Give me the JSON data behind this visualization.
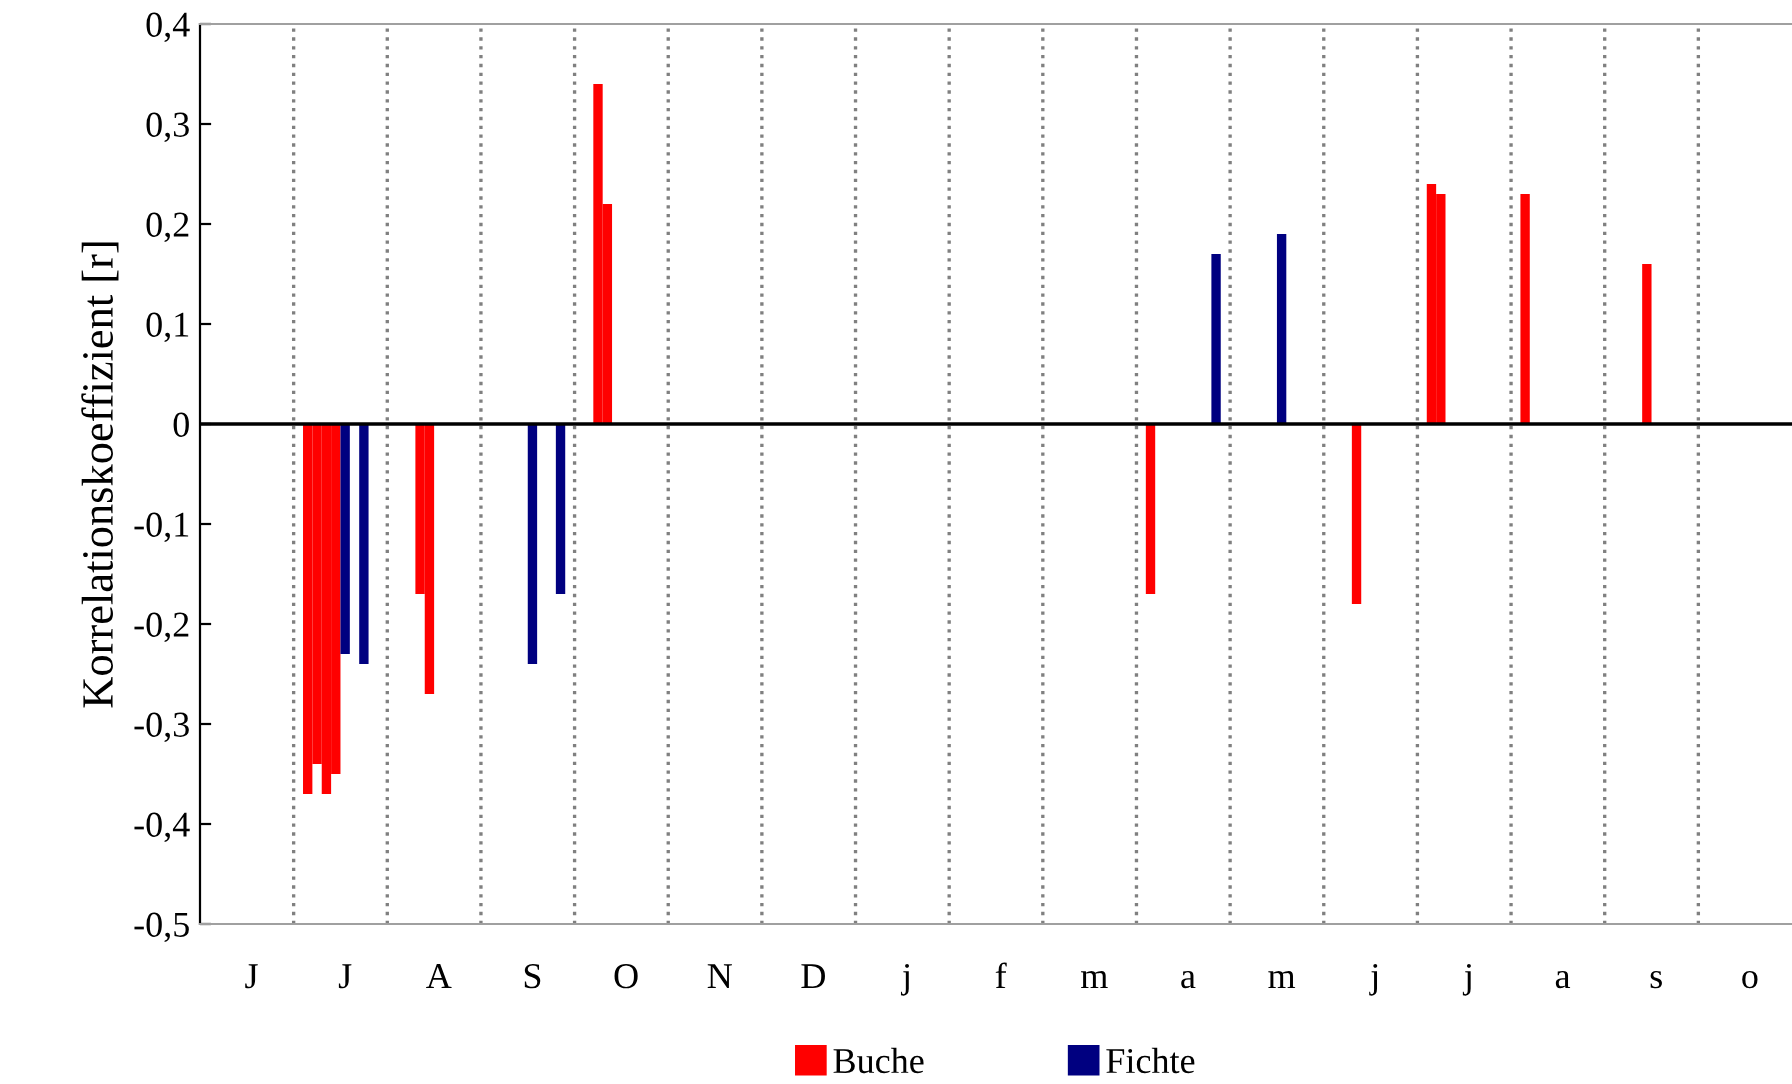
{
  "chart_data": {
    "type": "bar",
    "ylabel": "Korrelationskoeffizient [r]",
    "categories": [
      null,
      null,
      null,
      null,
      null,
      "J",
      null,
      null,
      null,
      null,
      null,
      null,
      null,
      null,
      null,
      "J",
      null,
      null,
      null,
      null,
      null,
      null,
      null,
      null,
      null,
      "A",
      null,
      null,
      null,
      null,
      null,
      null,
      null,
      null,
      null,
      "S",
      null,
      null,
      null,
      null,
      null,
      null,
      null,
      null,
      null,
      "O",
      null,
      null,
      null,
      null,
      null,
      null,
      null,
      null,
      null,
      "N",
      null,
      null,
      null,
      null,
      null,
      null,
      null,
      null,
      null,
      "D",
      null,
      null,
      null,
      null,
      null,
      null,
      null,
      null,
      null,
      "j",
      null,
      null,
      null,
      null,
      null,
      null,
      null,
      null,
      null,
      "f",
      null,
      null,
      null,
      null,
      null,
      null,
      null,
      null,
      null,
      "m",
      null,
      null,
      null,
      null,
      null,
      null,
      null,
      null,
      null,
      "a",
      null,
      null,
      null,
      null,
      null,
      null,
      null,
      null,
      null,
      "m",
      null,
      null,
      null,
      null,
      null,
      null,
      null,
      null,
      null,
      "j",
      null,
      null,
      null,
      null,
      null,
      null,
      null,
      null,
      null,
      "j",
      null,
      null,
      null,
      null,
      null,
      null,
      null,
      null,
      null,
      "a",
      null,
      null,
      null,
      null,
      null,
      null,
      null,
      null,
      null,
      "s",
      null,
      null,
      null,
      null,
      null,
      null,
      null,
      null,
      null,
      "o",
      null,
      null,
      null,
      null
    ],
    "series": [
      {
        "name": "Buche",
        "color": "#ff0000",
        "values": [
          null,
          null,
          null,
          null,
          null,
          null,
          null,
          null,
          null,
          null,
          null,
          -0.37,
          -0.34,
          -0.37,
          -0.35,
          null,
          null,
          null,
          null,
          null,
          null,
          null,
          null,
          -0.17,
          -0.27,
          null,
          null,
          null,
          null,
          null,
          null,
          null,
          null,
          null,
          null,
          null,
          null,
          null,
          null,
          null,
          null,
          null,
          0.34,
          0.22,
          null,
          null,
          null,
          null,
          null,
          null,
          null,
          null,
          null,
          null,
          null,
          null,
          null,
          null,
          null,
          null,
          null,
          null,
          null,
          null,
          null,
          null,
          null,
          null,
          null,
          null,
          null,
          null,
          null,
          null,
          null,
          null,
          null,
          null,
          null,
          null,
          null,
          null,
          null,
          null,
          null,
          null,
          null,
          null,
          null,
          null,
          null,
          null,
          null,
          null,
          null,
          null,
          null,
          null,
          null,
          null,
          null,
          -0.17,
          null,
          null,
          null,
          null,
          null,
          null,
          null,
          null,
          null,
          null,
          null,
          null,
          null,
          null,
          null,
          null,
          null,
          null,
          null,
          null,
          null,
          -0.18,
          null,
          null,
          null,
          null,
          null,
          null,
          null,
          0.24,
          0.23,
          null,
          null,
          null,
          null,
          null,
          null,
          null,
          null,
          0.23,
          null,
          null,
          null,
          null,
          null,
          null,
          null,
          null,
          null,
          null,
          null,
          null,
          0.16,
          null,
          null,
          null,
          null,
          null,
          null,
          null,
          null,
          null,
          null,
          null,
          null,
          null,
          null,
          null
        ]
      },
      {
        "name": "Fichte",
        "color": "#000080",
        "values": [
          null,
          null,
          null,
          null,
          null,
          null,
          null,
          null,
          null,
          null,
          null,
          null,
          null,
          null,
          null,
          -0.23,
          null,
          -0.24,
          null,
          null,
          null,
          null,
          null,
          null,
          null,
          null,
          null,
          null,
          null,
          null,
          null,
          null,
          null,
          null,
          null,
          -0.24,
          null,
          null,
          -0.17,
          null,
          null,
          null,
          null,
          null,
          null,
          null,
          null,
          null,
          null,
          null,
          null,
          null,
          null,
          null,
          null,
          null,
          null,
          null,
          null,
          null,
          null,
          null,
          null,
          null,
          null,
          null,
          null,
          null,
          null,
          null,
          null,
          null,
          null,
          null,
          null,
          null,
          null,
          null,
          null,
          null,
          null,
          null,
          null,
          null,
          null,
          null,
          null,
          null,
          null,
          null,
          null,
          null,
          null,
          null,
          null,
          null,
          null,
          null,
          null,
          null,
          null,
          null,
          null,
          null,
          null,
          null,
          null,
          null,
          0.17,
          null,
          null,
          null,
          null,
          null,
          null,
          0.19,
          null,
          null,
          null,
          null,
          null,
          null,
          null,
          null,
          null,
          null,
          null,
          null,
          null,
          null,
          null,
          null,
          null,
          null,
          null,
          null,
          null,
          null,
          null,
          null,
          null,
          null,
          null,
          null,
          null,
          null,
          null,
          null,
          null,
          null,
          null,
          null,
          null,
          null,
          null,
          null,
          null,
          null,
          null,
          null,
          null,
          null,
          null,
          null,
          null,
          null,
          null,
          null,
          null,
          null
        ]
      }
    ],
    "ylim": [
      -0.5,
      0.4
    ],
    "yticks": [
      {
        "value": -0.5,
        "label": "-0,5"
      },
      {
        "value": -0.4,
        "label": "-0,4"
      },
      {
        "value": -0.3,
        "label": "-0,3"
      },
      {
        "value": -0.2,
        "label": "-0,2"
      },
      {
        "value": -0.1,
        "label": "-0,1"
      },
      {
        "value": 0,
        "label": "0"
      },
      {
        "value": 0.1,
        "label": "0,1"
      },
      {
        "value": 0.2,
        "label": "0,2"
      },
      {
        "value": 0.3,
        "label": "0,3"
      },
      {
        "value": 0.4,
        "label": "0,4"
      }
    ],
    "ref_lines": [
      {
        "axis": "y",
        "value": 0,
        "color": "#000000",
        "line_style": "solid"
      }
    ],
    "grid": "x",
    "legend": "bottom"
  }
}
